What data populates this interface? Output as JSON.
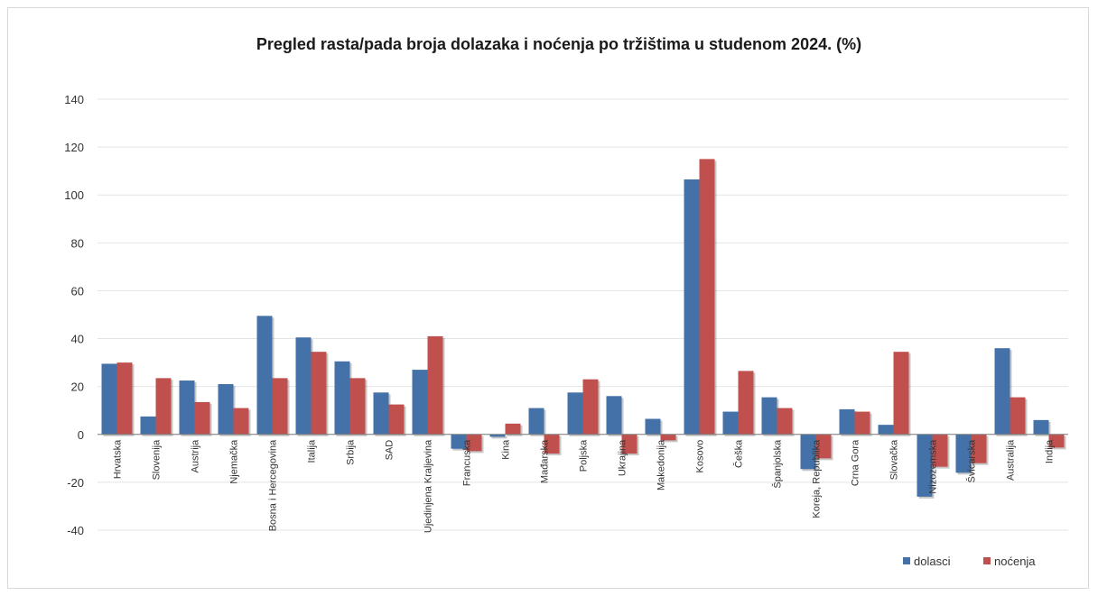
{
  "chart_data": {
    "type": "bar",
    "title": "Pregled rasta/pada broja dolazaka i noćenja po tržištima u studenom 2024. (%)",
    "xlabel": "",
    "ylabel": "",
    "ylim": [
      -40,
      140
    ],
    "yticks": [
      "140",
      "120",
      "100",
      "80",
      "60",
      "40",
      "20",
      "0",
      "-20",
      "-40"
    ],
    "ytick_values": [
      140,
      120,
      100,
      80,
      60,
      40,
      20,
      0,
      -20,
      -40
    ],
    "grid": true,
    "legend_position": "bottom-right",
    "categories": [
      "Hrvatska",
      "Slovenija",
      "Austrija",
      "Njemačka",
      "Bosna i Hercegovina",
      "Italija",
      "Srbija",
      "SAD",
      "Ujedinjena Kraljevina",
      "Francuska",
      "Kina",
      "Mađarska",
      "Poljska",
      "Ukrajina",
      "Makedonija",
      "Kosovo",
      "Češka",
      "Španjolska",
      "Koreja, Republika",
      "Crna Gora",
      "Slovačka",
      "Nizozemska",
      "Švicarska",
      "Australija",
      "Indija"
    ],
    "series": [
      {
        "name": "dolasci",
        "color": "#4472a8",
        "values": [
          29.5,
          7.5,
          22.5,
          21,
          49.5,
          40.5,
          30.5,
          17.5,
          27,
          -6,
          -1,
          11,
          17.5,
          16,
          6.5,
          106.5,
          9.5,
          15.5,
          -14.5,
          10.5,
          4,
          -26,
          -16,
          36,
          6
        ]
      },
      {
        "name": "noćenja",
        "color": "#c0504d",
        "values": [
          30,
          23.5,
          13.5,
          11,
          23.5,
          34.5,
          23.5,
          12.5,
          41,
          -7,
          4.5,
          -8,
          23,
          -8,
          -2.5,
          115,
          26.5,
          11,
          -10,
          9.5,
          34.5,
          -13.5,
          -12,
          15.5,
          -5.5
        ]
      }
    ]
  }
}
